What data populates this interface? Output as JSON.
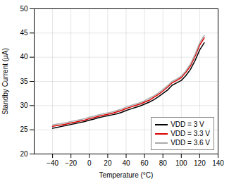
{
  "chart_data": {
    "type": "line",
    "xlabel": "Temperature (°C)",
    "ylabel": "Standby Current (µA)",
    "xlim": [
      -60,
      140
    ],
    "ylim": [
      20,
      50
    ],
    "xticks": [
      -40,
      -20,
      0,
      20,
      40,
      60,
      80,
      100,
      120,
      140
    ],
    "yticks": [
      20,
      25,
      30,
      35,
      40,
      45,
      50
    ],
    "grid": true,
    "legend": "lower right",
    "x": [
      -40,
      -35,
      -30,
      -25,
      -20,
      -15,
      -10,
      -5,
      0,
      5,
      10,
      15,
      20,
      25,
      30,
      35,
      40,
      45,
      50,
      55,
      60,
      65,
      70,
      75,
      80,
      85,
      90,
      95,
      100,
      105,
      110,
      115,
      120,
      125
    ],
    "series": [
      {
        "name": "VDD = 3 V",
        "color": "#000000",
        "values": [
          25.3,
          25.5,
          25.7,
          25.9,
          26.1,
          26.3,
          26.5,
          26.7,
          27.0,
          27.2,
          27.5,
          27.7,
          27.9,
          28.1,
          28.3,
          28.6,
          29.0,
          29.3,
          29.6,
          29.9,
          30.3,
          30.7,
          31.2,
          31.8,
          32.5,
          33.2,
          34.2,
          34.7,
          35.2,
          36.2,
          37.5,
          39.3,
          41.5,
          43.0
        ]
      },
      {
        "name": "VDD = 3.3 V",
        "color": "#dd0000",
        "values": [
          25.7,
          25.9,
          26.0,
          26.2,
          26.4,
          26.6,
          26.8,
          27.0,
          27.3,
          27.5,
          27.8,
          28.0,
          28.2,
          28.4,
          28.7,
          29.0,
          29.4,
          29.7,
          30.0,
          30.3,
          30.7,
          31.1,
          31.7,
          32.3,
          33.0,
          33.8,
          34.7,
          35.2,
          35.8,
          36.9,
          38.2,
          40.2,
          42.5,
          44.0
        ]
      },
      {
        "name": "VDD = 3.6 V",
        "color": "#aaaaaa",
        "values": [
          26.0,
          26.2,
          26.3,
          26.5,
          26.7,
          26.9,
          27.1,
          27.3,
          27.6,
          27.8,
          28.1,
          28.3,
          28.5,
          28.7,
          29.0,
          29.3,
          29.7,
          30.0,
          30.3,
          30.6,
          31.0,
          31.5,
          32.0,
          32.6,
          33.3,
          34.1,
          35.0,
          35.5,
          36.1,
          37.2,
          38.6,
          40.6,
          43.0,
          44.5
        ]
      }
    ]
  }
}
